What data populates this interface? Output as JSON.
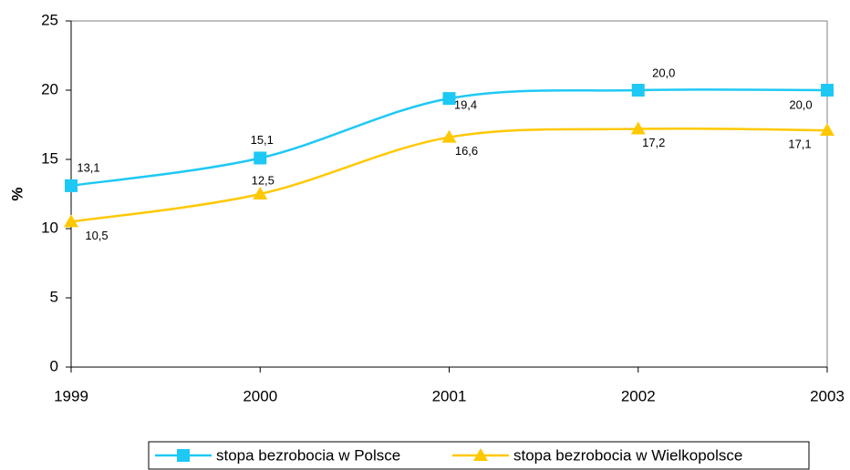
{
  "chart_data": {
    "type": "line",
    "y_label": "%",
    "categories": [
      "1999",
      "2000",
      "2001",
      "2002",
      "2003"
    ],
    "series": [
      {
        "name": "stopa bezrobocia w Polsce",
        "color": "#1ec8f5",
        "marker": "square",
        "values": [
          13.1,
          15.1,
          19.4,
          20.0,
          20.0
        ],
        "value_labels": [
          "13,1",
          "15,1",
          "19,4",
          "20,0",
          "20,0"
        ]
      },
      {
        "name": "stopa bezrobocia w Wielkopolsce",
        "color": "#ffc800",
        "marker": "triangle",
        "values": [
          10.5,
          12.5,
          16.6,
          17.2,
          17.1
        ],
        "value_labels": [
          "10,5",
          "12,5",
          "16,6",
          "17,2",
          "17,1"
        ]
      }
    ],
    "ylim": [
      0,
      25
    ],
    "yticks": [
      0,
      5,
      10,
      15,
      20,
      25
    ],
    "smooth": true,
    "legend": "bottom"
  }
}
